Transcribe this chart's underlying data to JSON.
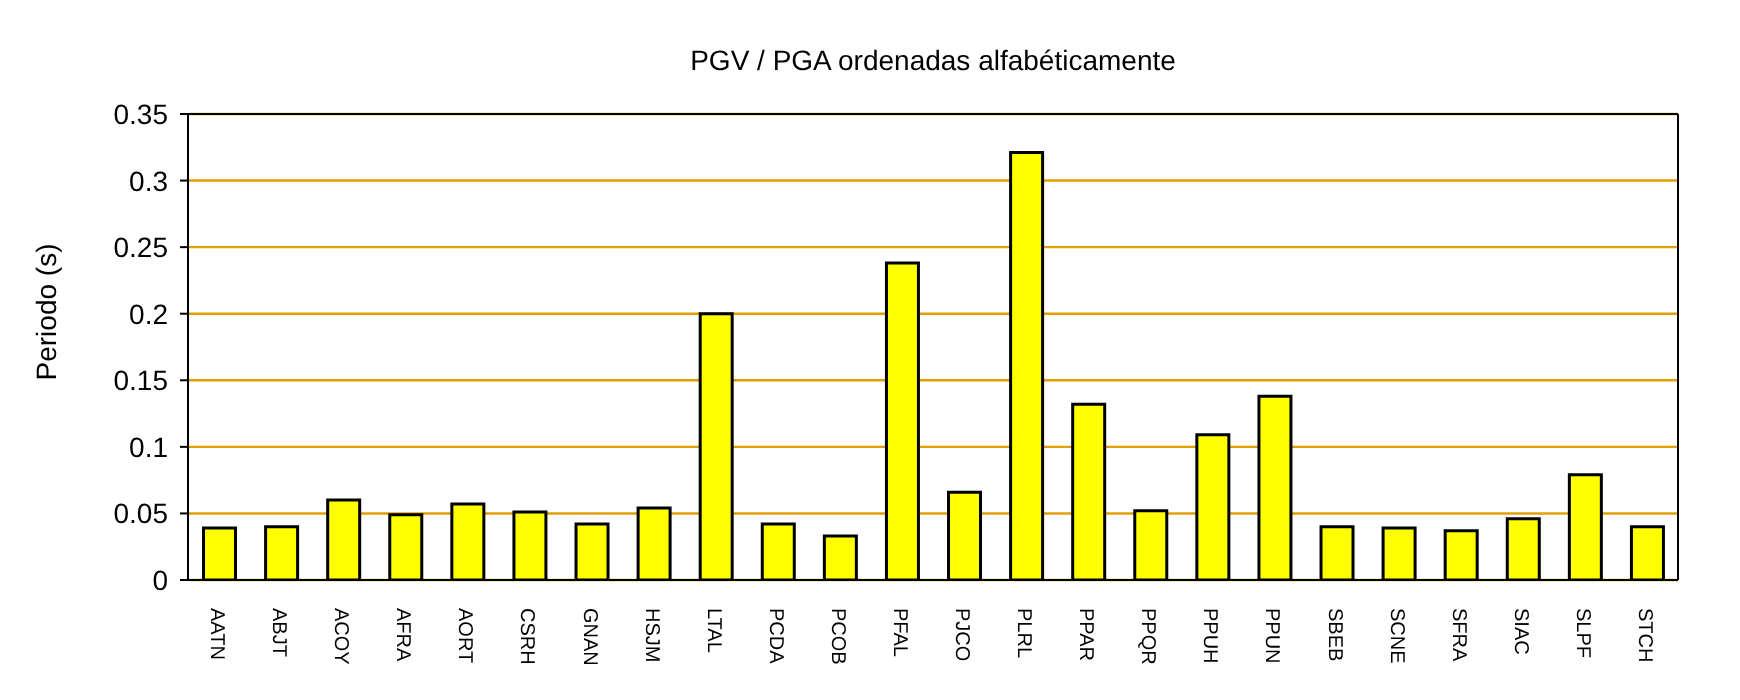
{
  "chart_data": {
    "type": "bar",
    "title": "PGV / PGA ordenadas alfabéticamente",
    "ylabel": "Periodo (s)",
    "categories": [
      "AATN",
      "ABJT",
      "ACOY",
      "AFRA",
      "AORT",
      "CSRH",
      "GNAN",
      "HSJM",
      "LTAL",
      "PCDA",
      "PCOB",
      "PFAL",
      "PJCO",
      "PLRL",
      "PPAR",
      "PPQR",
      "PPUH",
      "PPUN",
      "SBEB",
      "SCNE",
      "SFRA",
      "SIAC",
      "SLPF",
      "STCH"
    ],
    "values": [
      0.039,
      0.04,
      0.06,
      0.049,
      0.057,
      0.051,
      0.042,
      0.054,
      0.2,
      0.042,
      0.033,
      0.238,
      0.066,
      0.321,
      0.132,
      0.052,
      0.109,
      0.138,
      0.04,
      0.039,
      0.037,
      0.046,
      0.079,
      0.04
    ],
    "color": "#ffff00",
    "ylim": [
      0,
      0.35
    ],
    "yticks": [
      0,
      0.05,
      0.1,
      0.15,
      0.2,
      0.25,
      0.3,
      0.35
    ],
    "grid": "y"
  }
}
